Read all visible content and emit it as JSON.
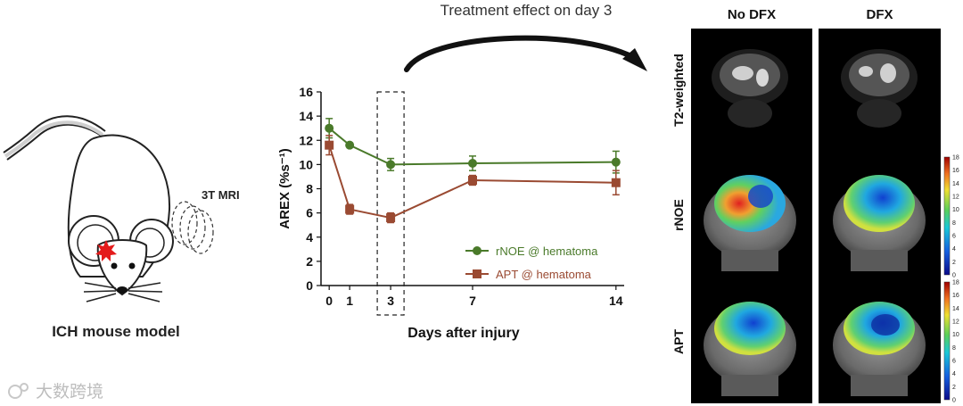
{
  "mouse": {
    "label": "ICH mouse model",
    "mri_label": "3T MRI"
  },
  "arrow": {
    "title": "Treatment effect on day 3"
  },
  "chart_data": {
    "type": "line",
    "title": "",
    "xlabel": "Days after injury",
    "ylabel": "AREX (%s⁻¹)",
    "x": [
      0,
      1,
      3,
      7,
      14
    ],
    "xlim": [
      -0.4,
      14.4
    ],
    "ylim": [
      0,
      16
    ],
    "x_ticks": [
      "0",
      "1",
      "3",
      "7",
      "14"
    ],
    "y_ticks": [
      "0",
      "2",
      "4",
      "6",
      "8",
      "10",
      "12",
      "14",
      "16"
    ],
    "highlight_x": 3,
    "series": [
      {
        "name": "rNOE @ hematoma",
        "color": "#4a7a2a",
        "marker": "circle",
        "values": [
          13.0,
          11.6,
          10.0,
          10.1,
          10.2
        ],
        "errors": [
          0.8,
          0.15,
          0.5,
          0.6,
          0.9
        ]
      },
      {
        "name": "APT @ hematoma",
        "color": "#9a4a32",
        "marker": "square",
        "values": [
          11.6,
          6.3,
          5.6,
          8.7,
          8.5
        ],
        "errors": [
          0.8,
          0.4,
          0.4,
          0.4,
          1.0
        ]
      }
    ]
  },
  "mri": {
    "columns": [
      "No DFX",
      "DFX"
    ],
    "rows": [
      "T2-weighted",
      "rNOE",
      "APT"
    ],
    "colorbar_ticks": [
      "0",
      "2",
      "4",
      "6",
      "8",
      "10",
      "12",
      "14",
      "16",
      "18"
    ]
  },
  "watermark": {
    "text": "大数跨境"
  }
}
